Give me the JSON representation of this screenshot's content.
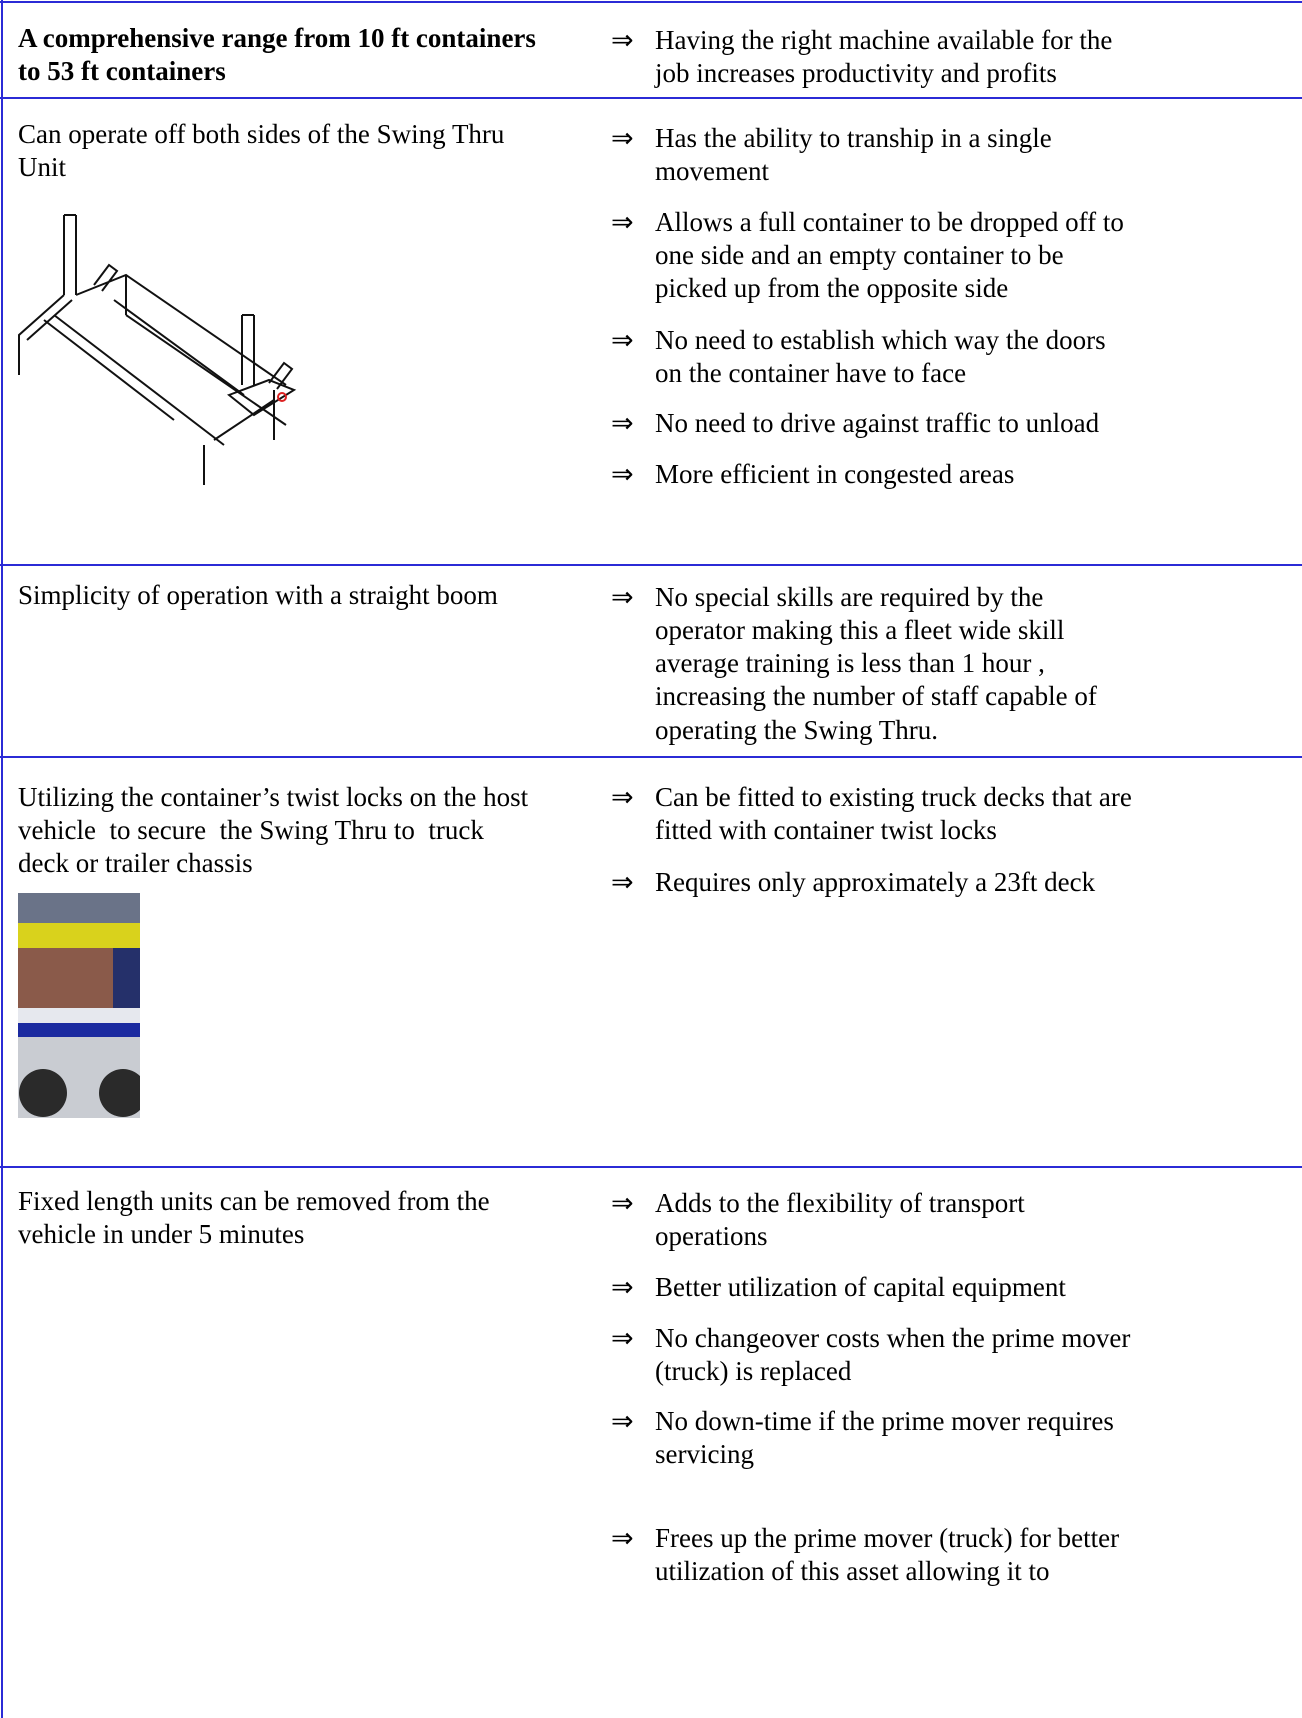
{
  "bullet": "⇒",
  "table": {
    "rows": [
      {
        "left": [
          "A comprehensive range from 10 ft containers",
          "to 53 ft containers"
        ],
        "right": [
          [
            "Having the right machine available for the",
            "job increases productivity and profits"
          ]
        ]
      },
      {
        "left": [
          "Can operate off both sides of the Swing Thru",
          "Unit"
        ],
        "right": [
          [
            "Has the ability to tranship in a single",
            "movement"
          ],
          [
            "Allows a full container to be dropped off to",
            "one side and an empty container to be",
            "picked up from the opposite side"
          ],
          [
            "No need to establish which way the doors",
            "on the container have to face"
          ],
          [
            "No need to drive against traffic to unload"
          ],
          [
            "More efficient in congested areas"
          ]
        ]
      },
      {
        "left": [
          "Simplicity of operation with a straight boom"
        ],
        "right": [
          [
            "No special skills are required by the",
            "operator making this a fleet wide skill",
            "average training is less than 1 hour ,",
            "increasing the number of staff capable of",
            "operating the Swing Thru."
          ]
        ]
      },
      {
        "left": [
          "Utilizing the container’s twist locks on the host",
          "vehicle  to secure  the Swing Thru to  truck",
          "deck or trailer chassis"
        ],
        "right": [
          [
            "Can be fitted to existing truck decks that are",
            "fitted with container twist locks"
          ],
          [
            "Requires only approximately a 23ft deck"
          ]
        ]
      },
      {
        "left": [
          "Fixed length units can be removed from the",
          "vehicle in under 5 minutes"
        ],
        "right": [
          [
            "Adds to the flexibility of transport",
            "operations"
          ],
          [
            "Better utilization of capital equipment"
          ],
          [
            "No changeover costs when the prime mover",
            "(truck) is replaced"
          ],
          [
            "No down-time if the prime mover requires",
            "servicing"
          ],
          [
            "Frees up the prime mover (truck) for better",
            "utilization of this asset allowing it to"
          ]
        ]
      }
    ]
  }
}
